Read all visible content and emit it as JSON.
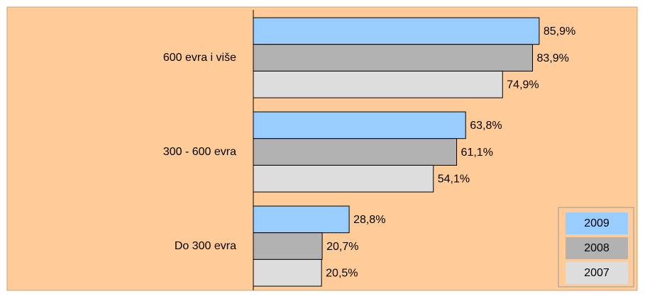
{
  "chart_data": {
    "type": "bar",
    "orientation": "horizontal",
    "categories": [
      "600 evra i više",
      "300 - 600 evra",
      "Do 300 evra"
    ],
    "series": [
      {
        "name": "2009",
        "color": "#99ccff",
        "values": [
          85.9,
          63.8,
          28.8
        ],
        "value_labels": [
          "85,9%",
          "63,8%",
          "28,8%"
        ]
      },
      {
        "name": "2008",
        "color": "#b2b2b2",
        "values": [
          83.9,
          61.1,
          20.7
        ],
        "value_labels": [
          "83,9%",
          "61,1%",
          "20,7%"
        ]
      },
      {
        "name": "2007",
        "color": "#dddddd",
        "values": [
          74.9,
          54.1,
          20.5
        ],
        "value_labels": [
          "74,9%",
          "54,1%",
          "20,5%"
        ]
      }
    ],
    "xlim": [
      0,
      100
    ],
    "legend": "lower right"
  }
}
